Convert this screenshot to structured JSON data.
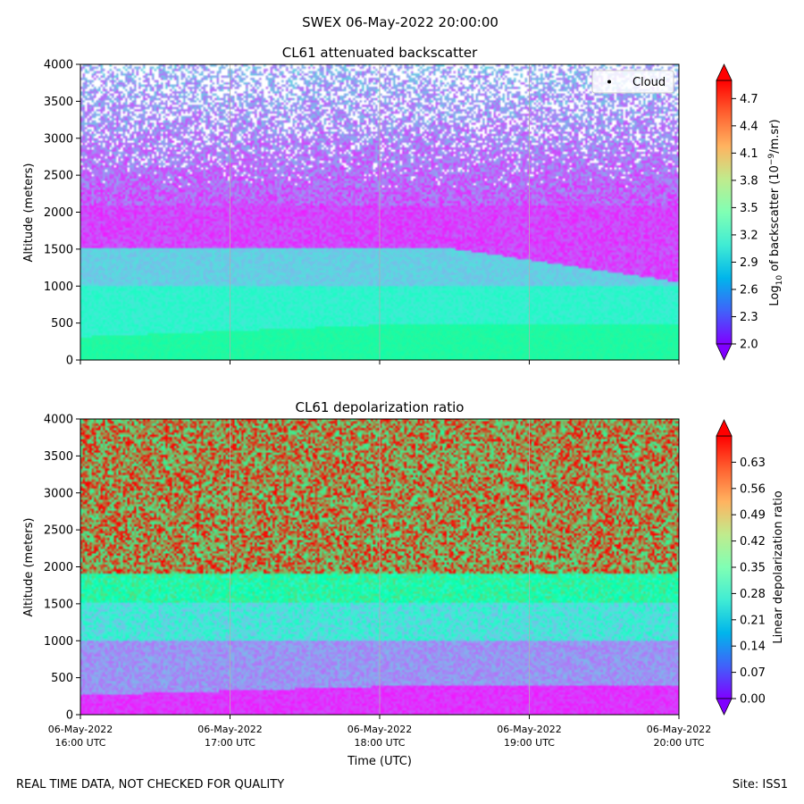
{
  "figure": {
    "suptitle": "SWEX 06-May-2022 20:00:00",
    "footer_left": "REAL TIME DATA, NOT CHECKED FOR QUALITY",
    "footer_right": "Site: ISS1"
  },
  "chart_data": [
    {
      "type": "heatmap",
      "title": "CL61 attenuated backscatter",
      "ylabel": "Altitude (meters)",
      "xlabel": "",
      "xlim": [
        0,
        4
      ],
      "ylim": [
        0,
        4000
      ],
      "yticks": [
        0,
        500,
        1000,
        1500,
        2000,
        2500,
        3000,
        3500,
        4000
      ],
      "ytick_labels": [
        "0",
        "500",
        "1000",
        "1500",
        "2000",
        "2500",
        "3000",
        "3500",
        "4000"
      ],
      "xticks": [
        0,
        1,
        2,
        3,
        4
      ],
      "xtick_labels": [],
      "colorbar": {
        "label_parts": [
          "Log",
          "10",
          " of backscatter (10",
          "−9",
          "/m.sr)"
        ],
        "range": [
          2.0,
          4.9
        ],
        "ticks": [
          2.0,
          2.3,
          2.6,
          2.9,
          3.2,
          3.5,
          3.8,
          4.1,
          4.4,
          4.7
        ],
        "tick_labels": [
          "2.0",
          "2.3",
          "2.6",
          "2.9",
          "3.2",
          "3.5",
          "3.8",
          "4.1",
          "4.4",
          "4.7"
        ],
        "colormap": "rainbow",
        "extend": "both"
      },
      "legend": {
        "entries": [
          "Cloud"
        ],
        "placement": "top-right"
      },
      "profile_note": "high values near surface, decreasing with altitude; sparse above 2500 m"
    },
    {
      "type": "heatmap",
      "title": "CL61 depolarization ratio",
      "ylabel": "Altitude (meters)",
      "xlabel": "Time (UTC)",
      "xlim": [
        0,
        4
      ],
      "ylim": [
        0,
        4000
      ],
      "yticks": [
        0,
        500,
        1000,
        1500,
        2000,
        2500,
        3000,
        3500,
        4000
      ],
      "ytick_labels": [
        "0",
        "500",
        "1000",
        "1500",
        "2000",
        "2500",
        "3000",
        "3500",
        "4000"
      ],
      "xticks": [
        0,
        1,
        2,
        3,
        4
      ],
      "xtick_labels": [
        [
          "06-May-2022",
          "16:00 UTC"
        ],
        [
          "06-May-2022",
          "17:00 UTC"
        ],
        [
          "06-May-2022",
          "18:00 UTC"
        ],
        [
          "06-May-2022",
          "19:00 UTC"
        ],
        [
          "06-May-2022",
          "20:00 UTC"
        ]
      ],
      "colorbar": {
        "label_parts": [
          "Linear depolarization ratio"
        ],
        "range": [
          0.0,
          0.7
        ],
        "ticks": [
          0.0,
          0.07,
          0.14,
          0.21,
          0.28,
          0.35,
          0.42,
          0.49,
          0.56,
          0.63
        ],
        "tick_labels": [
          "0.00",
          "0.07",
          "0.14",
          "0.21",
          "0.28",
          "0.35",
          "0.42",
          "0.49",
          "0.56",
          "0.63"
        ],
        "colormap": "rainbow",
        "extend": "both"
      },
      "profile_note": "low values near surface, increasing with altitude; noisy high values above 1800 m"
    }
  ]
}
